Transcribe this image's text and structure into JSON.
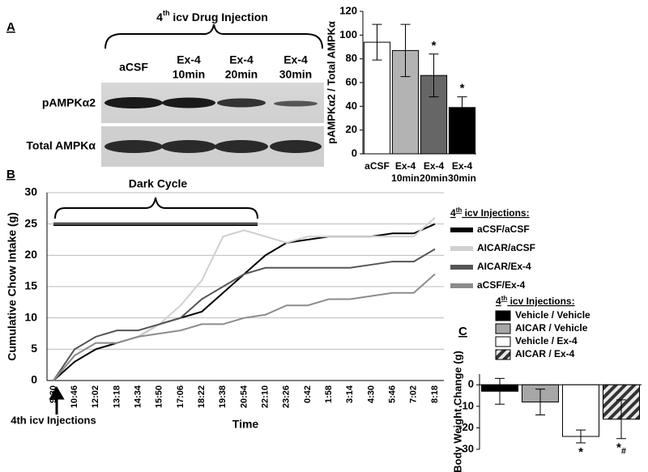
{
  "figure": {
    "panel_labels": [
      "A",
      "B",
      "C"
    ]
  },
  "blot": {
    "header": {
      "number": "4",
      "sup": "th",
      "rest": " icv Drug Injection"
    },
    "lanes": [
      [
        "aCSF"
      ],
      [
        "Ex-4",
        "10min"
      ],
      [
        "Ex-4",
        "20min"
      ],
      [
        "Ex-4",
        "30min"
      ]
    ],
    "rows": [
      "pAMPKα2",
      "Total AMPKα"
    ]
  },
  "chart_data": [
    {
      "type": "bar",
      "ylabel": "pAMPKα2 / Total AMPKα",
      "categories": [
        [
          "aCSF"
        ],
        [
          "Ex-4",
          "10min"
        ],
        [
          "Ex-4",
          "20min"
        ],
        [
          "Ex-4",
          "30min"
        ]
      ],
      "values": [
        94,
        87,
        66,
        39
      ],
      "errors": [
        15,
        22,
        18,
        9
      ],
      "colors": [
        "#ffffff",
        "#b3b3b3",
        "#666666",
        "#000000"
      ],
      "hatched": [
        false,
        false,
        false,
        false
      ],
      "annotations": [
        {
          "index": 2,
          "text": "*"
        },
        {
          "index": 3,
          "text": "*"
        }
      ],
      "ylim": [
        0,
        120
      ],
      "yticks": [
        0,
        20,
        40,
        60,
        80,
        100,
        120
      ]
    },
    {
      "type": "line",
      "xlabel": "Time",
      "ylabel": "Cumulative Chow Intake (g)",
      "categories": [
        "9:30",
        "10:46",
        "12:02",
        "13:18",
        "14:34",
        "15:50",
        "17:06",
        "18:22",
        "19:38",
        "20:54",
        "22:10",
        "23:26",
        "0:42",
        "1:58",
        "3:14",
        "4:30",
        "5:46",
        "7:02",
        "8:18"
      ],
      "series": [
        {
          "name": "aCSF/aCSF",
          "color": "#000000",
          "values": [
            0,
            3,
            5,
            6,
            7,
            9,
            10,
            11,
            14,
            17,
            20,
            22,
            22.5,
            23,
            23,
            23,
            23.5,
            23.5,
            25
          ]
        },
        {
          "name": "AICAR/aCSF",
          "color": "#d0d0d0",
          "values": [
            0,
            4,
            6,
            6,
            7,
            9,
            12,
            16,
            23,
            24,
            23,
            22,
            23,
            23,
            23,
            23,
            23,
            23,
            26
          ]
        },
        {
          "name": "AICAR/Ex-4",
          "color": "#555555",
          "values": [
            0,
            5,
            7,
            8,
            8,
            9,
            10,
            13,
            15,
            17,
            18,
            18,
            18,
            18,
            18,
            18.5,
            19,
            19,
            21
          ]
        },
        {
          "name": "aCSF/Ex-4",
          "color": "#8c8c8c",
          "values": [
            0,
            4,
            6,
            6,
            7,
            7.5,
            8,
            9,
            9,
            10,
            10.5,
            12,
            12,
            13,
            13,
            13.5,
            14,
            14,
            17
          ]
        }
      ],
      "legend_title": {
        "number": "4",
        "sup": "th",
        "rest": " icv Injections:"
      },
      "annotations": {
        "dark_cycle": "Dark Cycle",
        "injection": "4th icv Injections"
      },
      "ylim": [
        0,
        30
      ],
      "yticks": [
        0,
        5,
        10,
        15,
        20,
        25,
        30
      ],
      "grid": true
    },
    {
      "type": "bar",
      "ylabel": "Body Weight Change (g)",
      "categories": [
        "Vehicle / Vehicle",
        "AICAR / Vehicle",
        "Vehicle / Ex-4",
        "AICAR / Ex-4"
      ],
      "values": [
        -3,
        -8,
        -24,
        -16
      ],
      "errors": [
        6,
        6,
        3,
        9
      ],
      "colors": [
        "#000000",
        "#a6a6a6",
        "#ffffff",
        "#7f7f7f"
      ],
      "hatched": [
        false,
        false,
        false,
        true
      ],
      "legend_title": {
        "number": "4",
        "sup": "th",
        "rest": " icv Injections:"
      },
      "annotations": [
        {
          "index": 2,
          "text": "*"
        },
        {
          "index": 3,
          "text": "*",
          "sub": "#"
        }
      ],
      "ylim": [
        -30,
        5
      ],
      "yticks": [
        0,
        -10,
        -20,
        -30
      ]
    }
  ]
}
